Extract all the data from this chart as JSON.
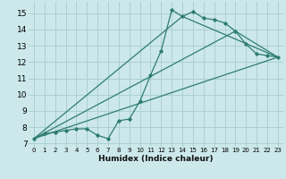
{
  "xlabel": "Humidex (Indice chaleur)",
  "ylabel": "",
  "bg_color": "#cce8ea",
  "grid_color": "#aad0d4",
  "line_color": "#2e7d6e",
  "xlim": [
    -0.5,
    23.5
  ],
  "ylim": [
    6.8,
    15.7
  ],
  "xticks": [
    0,
    1,
    2,
    3,
    4,
    5,
    6,
    7,
    8,
    9,
    10,
    11,
    12,
    13,
    14,
    15,
    16,
    17,
    18,
    19,
    20,
    21,
    22,
    23
  ],
  "yticks": [
    7,
    8,
    9,
    10,
    11,
    12,
    13,
    14,
    15
  ],
  "series1_x": [
    0,
    1,
    2,
    3,
    4,
    5,
    6,
    7,
    8,
    9,
    10,
    11,
    12,
    13,
    14,
    15,
    16,
    17,
    18,
    19,
    20,
    21,
    22,
    23
  ],
  "series1_y": [
    7.3,
    7.6,
    7.7,
    7.8,
    7.9,
    7.9,
    7.5,
    7.3,
    8.4,
    8.5,
    9.6,
    11.2,
    12.7,
    15.2,
    14.8,
    15.1,
    14.7,
    14.6,
    14.4,
    13.9,
    13.1,
    12.5,
    12.4,
    12.3
  ],
  "series2_x": [
    0,
    23
  ],
  "series2_y": [
    7.3,
    12.3
  ],
  "series3_x": [
    0,
    19,
    23
  ],
  "series3_y": [
    7.3,
    13.9,
    12.3
  ],
  "series4_x": [
    0,
    14,
    23
  ],
  "series4_y": [
    7.3,
    14.8,
    12.3
  ]
}
